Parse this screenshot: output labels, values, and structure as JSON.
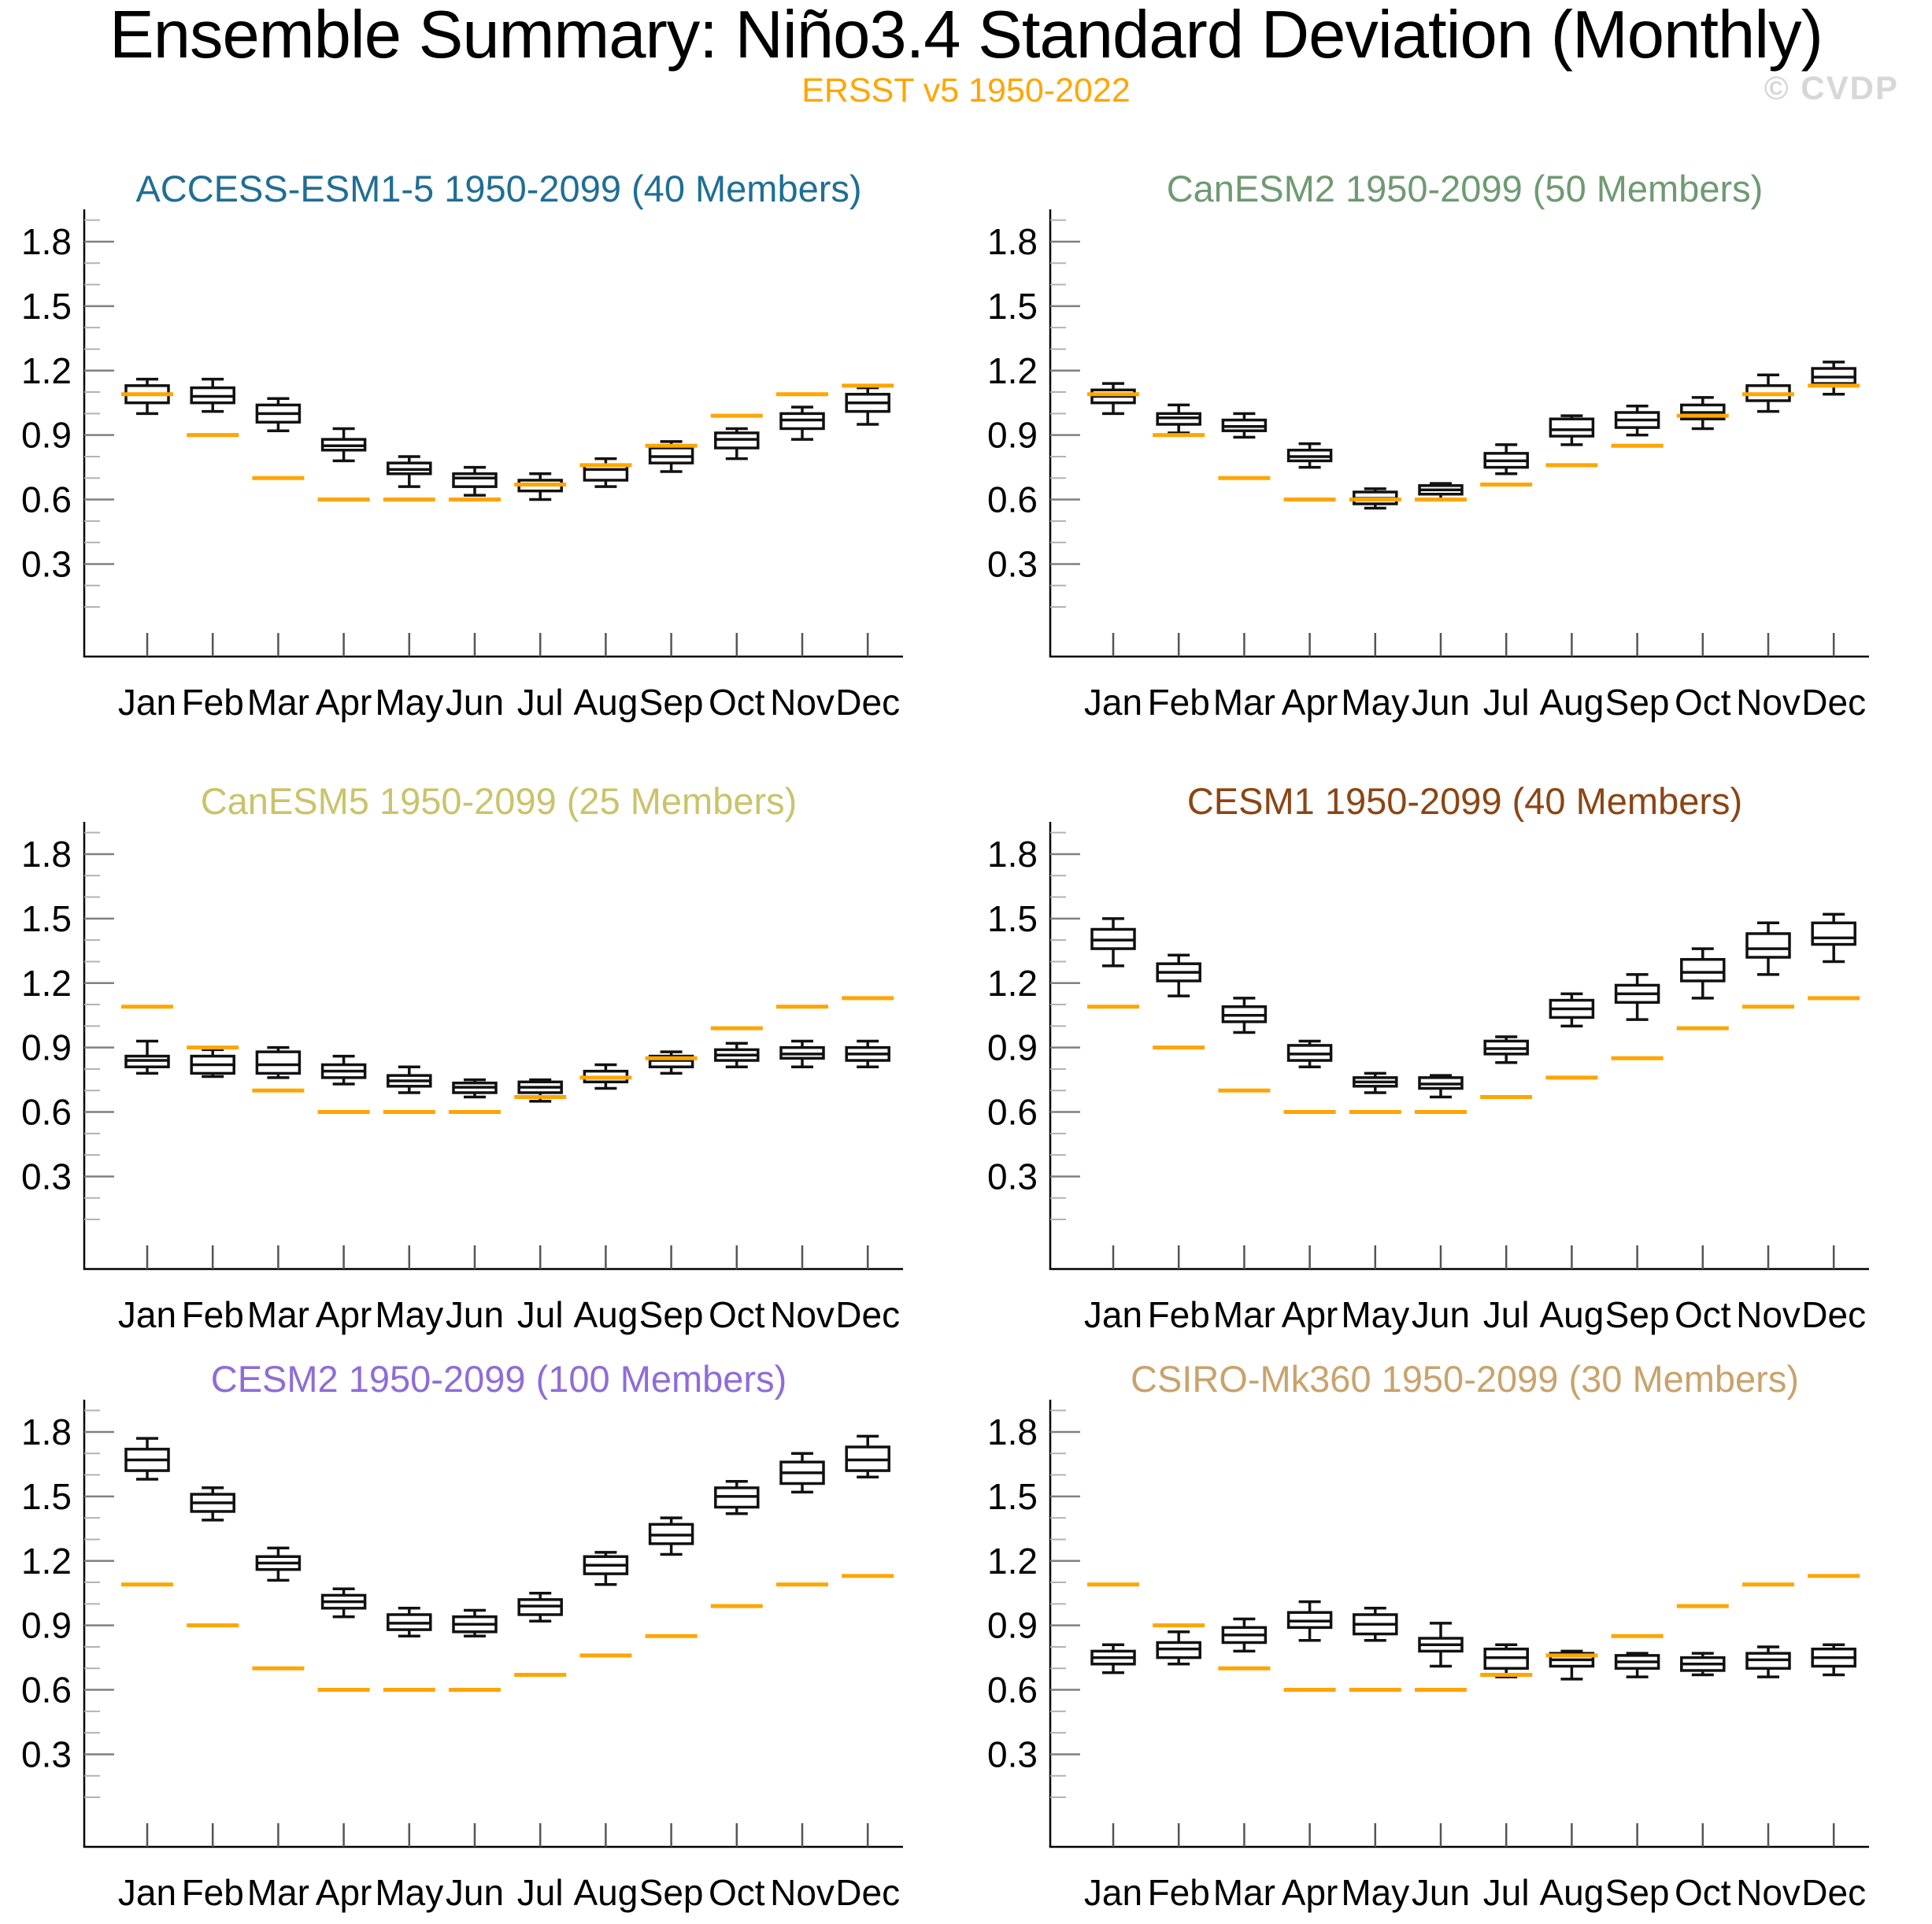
{
  "header": {
    "title": "Ensemble Summary: Niño3.4 Standard Deviation (Monthly)",
    "subtitle": "ERSST v5 1950-2022",
    "subtitle_color": "#FFA500",
    "watermark": "© CVDP"
  },
  "chart_data": {
    "type": "boxplot-grid",
    "title": "Ensemble Summary: Niño3.4 Standard Deviation (Monthly)",
    "subtitle": "ERSST v5 1950-2022",
    "grid": "3 rows x 2 columns, one panel per model ensemble",
    "months": [
      "Jan",
      "Feb",
      "Mar",
      "Apr",
      "May",
      "Jun",
      "Jul",
      "Aug",
      "Sep",
      "Oct",
      "Nov",
      "Dec"
    ],
    "ylabel": "",
    "y_ticks": [
      0.3,
      0.6,
      0.9,
      1.2,
      1.5,
      1.8
    ],
    "y_minor_step": 0.1,
    "ylim_ticks": [
      0.15,
      1.95
    ],
    "grid_lines": "off",
    "legend": "none",
    "box_style": {
      "fill": "#ffffff",
      "stroke": "#111111"
    },
    "obs_series_name": "ERSST v5 1950-2022 observed",
    "obs_color": "#FFA500",
    "obs_values": [
      1.09,
      0.9,
      0.7,
      0.6,
      0.6,
      0.6,
      0.67,
      0.76,
      0.85,
      0.99,
      1.09,
      1.13
    ],
    "box_fields": [
      "whisker_low",
      "q1",
      "median",
      "q3",
      "whisker_high"
    ],
    "panels": [
      {
        "title": "ACCESS-ESM1-5 1950-2099 (40 Members)",
        "color": "#1F6E96",
        "boxes": [
          [
            1.0,
            1.05,
            1.09,
            1.13,
            1.16
          ],
          [
            1.01,
            1.05,
            1.08,
            1.12,
            1.16
          ],
          [
            0.92,
            0.96,
            1.0,
            1.04,
            1.07
          ],
          [
            0.78,
            0.83,
            0.85,
            0.88,
            0.93
          ],
          [
            0.66,
            0.72,
            0.74,
            0.77,
            0.8
          ],
          [
            0.62,
            0.66,
            0.7,
            0.72,
            0.75
          ],
          [
            0.6,
            0.64,
            0.67,
            0.69,
            0.72
          ],
          [
            0.66,
            0.69,
            0.74,
            0.76,
            0.79
          ],
          [
            0.73,
            0.77,
            0.8,
            0.84,
            0.87
          ],
          [
            0.79,
            0.84,
            0.88,
            0.91,
            0.93
          ],
          [
            0.88,
            0.93,
            0.97,
            1.0,
            1.03
          ],
          [
            0.95,
            1.01,
            1.05,
            1.09,
            1.12
          ]
        ]
      },
      {
        "title": "CanESM2 1950-2099 (50 Members)",
        "color": "#6F9A72",
        "boxes": [
          [
            1.0,
            1.05,
            1.08,
            1.11,
            1.14
          ],
          [
            0.91,
            0.95,
            0.98,
            1.0,
            1.04
          ],
          [
            0.89,
            0.92,
            0.94,
            0.97,
            1.0
          ],
          [
            0.75,
            0.78,
            0.8,
            0.83,
            0.86
          ],
          [
            0.56,
            0.58,
            0.605,
            0.635,
            0.65
          ],
          [
            0.6,
            0.625,
            0.645,
            0.665,
            0.675
          ],
          [
            0.72,
            0.75,
            0.78,
            0.815,
            0.855
          ],
          [
            0.855,
            0.895,
            0.925,
            0.975,
            0.99
          ],
          [
            0.9,
            0.935,
            0.97,
            1.005,
            1.035
          ],
          [
            0.93,
            0.975,
            1.005,
            1.04,
            1.075
          ],
          [
            1.01,
            1.06,
            1.09,
            1.13,
            1.18
          ],
          [
            1.09,
            1.14,
            1.17,
            1.21,
            1.24
          ]
        ]
      },
      {
        "title": "CanESM5 1950-2099 (25 Members)",
        "color": "#CBC36B",
        "boxes": [
          [
            0.78,
            0.81,
            0.84,
            0.86,
            0.93
          ],
          [
            0.765,
            0.78,
            0.82,
            0.86,
            0.89
          ],
          [
            0.76,
            0.78,
            0.82,
            0.88,
            0.9
          ],
          [
            0.73,
            0.76,
            0.79,
            0.82,
            0.86
          ],
          [
            0.69,
            0.72,
            0.745,
            0.77,
            0.81
          ],
          [
            0.67,
            0.69,
            0.715,
            0.735,
            0.75
          ],
          [
            0.65,
            0.69,
            0.715,
            0.74,
            0.75
          ],
          [
            0.71,
            0.74,
            0.76,
            0.79,
            0.82
          ],
          [
            0.78,
            0.81,
            0.84,
            0.86,
            0.88
          ],
          [
            0.81,
            0.84,
            0.865,
            0.89,
            0.92
          ],
          [
            0.81,
            0.85,
            0.87,
            0.9,
            0.93
          ],
          [
            0.81,
            0.84,
            0.87,
            0.9,
            0.93
          ]
        ]
      },
      {
        "title": "CESM1 1950-2099 (40 Members)",
        "color": "#8B4513",
        "boxes": [
          [
            1.28,
            1.36,
            1.4,
            1.45,
            1.5
          ],
          [
            1.14,
            1.21,
            1.25,
            1.29,
            1.33
          ],
          [
            0.97,
            1.02,
            1.05,
            1.09,
            1.13
          ],
          [
            0.81,
            0.84,
            0.87,
            0.91,
            0.93
          ],
          [
            0.69,
            0.72,
            0.74,
            0.76,
            0.78
          ],
          [
            0.67,
            0.71,
            0.73,
            0.76,
            0.77
          ],
          [
            0.83,
            0.87,
            0.895,
            0.93,
            0.95
          ],
          [
            1.0,
            1.04,
            1.08,
            1.12,
            1.15
          ],
          [
            1.03,
            1.11,
            1.15,
            1.19,
            1.24
          ],
          [
            1.13,
            1.21,
            1.25,
            1.31,
            1.36
          ],
          [
            1.24,
            1.32,
            1.36,
            1.43,
            1.48
          ],
          [
            1.3,
            1.38,
            1.41,
            1.48,
            1.52
          ]
        ]
      },
      {
        "title": "CESM2 1950-2099 (100 Members)",
        "color": "#8F6CD8",
        "boxes": [
          [
            1.58,
            1.62,
            1.67,
            1.72,
            1.77
          ],
          [
            1.39,
            1.43,
            1.47,
            1.51,
            1.54
          ],
          [
            1.11,
            1.16,
            1.19,
            1.22,
            1.26
          ],
          [
            0.94,
            0.98,
            1.01,
            1.04,
            1.07
          ],
          [
            0.85,
            0.88,
            0.91,
            0.95,
            0.98
          ],
          [
            0.85,
            0.87,
            0.905,
            0.94,
            0.97
          ],
          [
            0.92,
            0.95,
            0.99,
            1.02,
            1.05
          ],
          [
            1.09,
            1.14,
            1.18,
            1.22,
            1.24
          ],
          [
            1.23,
            1.28,
            1.32,
            1.37,
            1.4
          ],
          [
            1.42,
            1.45,
            1.5,
            1.54,
            1.57
          ],
          [
            1.52,
            1.56,
            1.61,
            1.66,
            1.7
          ],
          [
            1.59,
            1.62,
            1.67,
            1.73,
            1.78
          ]
        ]
      },
      {
        "title": "CSIRO-Mk360 1950-2099 (30 Members)",
        "color": "#C9A36C",
        "boxes": [
          [
            0.68,
            0.72,
            0.75,
            0.78,
            0.81
          ],
          [
            0.72,
            0.75,
            0.79,
            0.82,
            0.87
          ],
          [
            0.78,
            0.82,
            0.855,
            0.89,
            0.93
          ],
          [
            0.83,
            0.89,
            0.92,
            0.96,
            1.01
          ],
          [
            0.83,
            0.86,
            0.905,
            0.95,
            0.98
          ],
          [
            0.71,
            0.78,
            0.81,
            0.84,
            0.91
          ],
          [
            0.66,
            0.7,
            0.75,
            0.79,
            0.81
          ],
          [
            0.65,
            0.71,
            0.74,
            0.77,
            0.78
          ],
          [
            0.66,
            0.7,
            0.73,
            0.76,
            0.77
          ],
          [
            0.67,
            0.69,
            0.72,
            0.75,
            0.77
          ],
          [
            0.66,
            0.7,
            0.74,
            0.77,
            0.8
          ],
          [
            0.67,
            0.71,
            0.75,
            0.79,
            0.81
          ]
        ]
      }
    ]
  }
}
